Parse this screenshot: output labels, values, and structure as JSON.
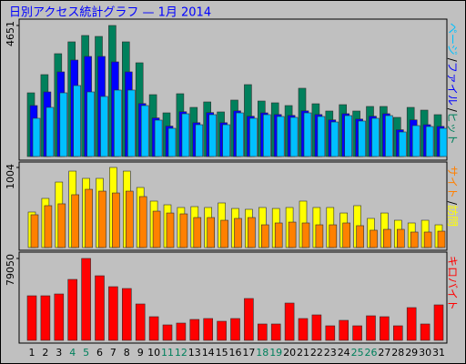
{
  "chart_data": [
    {
      "type": "bar",
      "title": "日別アクセス統計グラフ — 1月 2014",
      "legend_separator": "/",
      "ylim": [
        0,
        4651
      ],
      "yticks": [
        4651
      ],
      "series": [
        {
          "name": "ヒット",
          "color": "#00805c",
          "values": [
            2261,
            2907,
            3650,
            4070,
            4296,
            4263,
            4651,
            4070,
            3327,
            2196,
            1550,
            2229,
            1744,
            1938,
            1583,
            2003,
            2552,
            1970,
            1906,
            1809,
            2423,
            1873,
            1615,
            1841,
            1615,
            1777,
            1777,
            1389,
            1744,
            1647,
            1486
          ]
        },
        {
          "name": "ファイル",
          "color": "#0000ff",
          "values": [
            1809,
            2293,
            3004,
            3424,
            3553,
            3553,
            3359,
            3004,
            1880,
            1370,
            1080,
            1590,
            1200,
            1560,
            1200,
            1620,
            1430,
            1550,
            1490,
            1460,
            1620,
            1490,
            1300,
            1520,
            1330,
            1430,
            1520,
            950,
            1300,
            1130,
            1070
          ]
        },
        {
          "name": "ページ",
          "color": "#00c0ff",
          "values": [
            1357,
            1744,
            2261,
            2519,
            2293,
            2132,
            2358,
            2358,
            1809,
            1292,
            1001,
            1518,
            1130,
            1486,
            1130,
            1550,
            1357,
            1486,
            1421,
            1389,
            1550,
            1421,
            1227,
            1453,
            1260,
            1357,
            1453,
            872,
            1098,
            1066,
            1001
          ]
        }
      ]
    },
    {
      "type": "bar",
      "legend_separator": "/",
      "ylim": [
        0,
        1004
      ],
      "yticks": [
        1004
      ],
      "series": [
        {
          "name": "訪問",
          "color": "#ffff00",
          "values": [
            445,
            616,
            821,
            958,
            867,
            867,
            1004,
            958,
            753,
            582,
            536,
            502,
            513,
            502,
            559,
            490,
            479,
            502,
            490,
            502,
            582,
            502,
            502,
            433,
            525,
            365,
            433,
            342,
            308,
            342,
            285
          ]
        },
        {
          "name": "サイト",
          "color": "#ff8000",
          "values": [
            411,
            525,
            548,
            662,
            730,
            707,
            684,
            707,
            639,
            456,
            433,
            422,
            376,
            376,
            342,
            365,
            376,
            285,
            308,
            319,
            308,
            285,
            285,
            308,
            274,
            217,
            228,
            228,
            194,
            194,
            205
          ]
        }
      ]
    },
    {
      "type": "bar",
      "ylim": [
        0,
        79050
      ],
      "yticks": [
        79050
      ],
      "categories": [
        "1",
        "2",
        "3",
        "4",
        "5",
        "6",
        "7",
        "8",
        "9",
        "10",
        "11",
        "12",
        "13",
        "14",
        "15",
        "16",
        "17",
        "18",
        "19",
        "20",
        "21",
        "22",
        "23",
        "24",
        "25",
        "26",
        "27",
        "28",
        "29",
        "30",
        "31"
      ],
      "weekend_indices": [
        3,
        4,
        10,
        11,
        17,
        18,
        24,
        25
      ],
      "weekend_color": "#00805c",
      "series": [
        {
          "name": "キロバイト",
          "color": "#ff0000",
          "values": [
            43022,
            43022,
            44778,
            58826,
            79050,
            62338,
            51802,
            50046,
            35120,
            22828,
            14926,
            16682,
            20194,
            21072,
            18438,
            21072,
            40388,
            15804,
            15804,
            35998,
            21072,
            24584,
            14048,
            19316,
            14048,
            23706,
            22828,
            14048,
            31608,
            15804,
            34242
          ]
        }
      ]
    }
  ]
}
